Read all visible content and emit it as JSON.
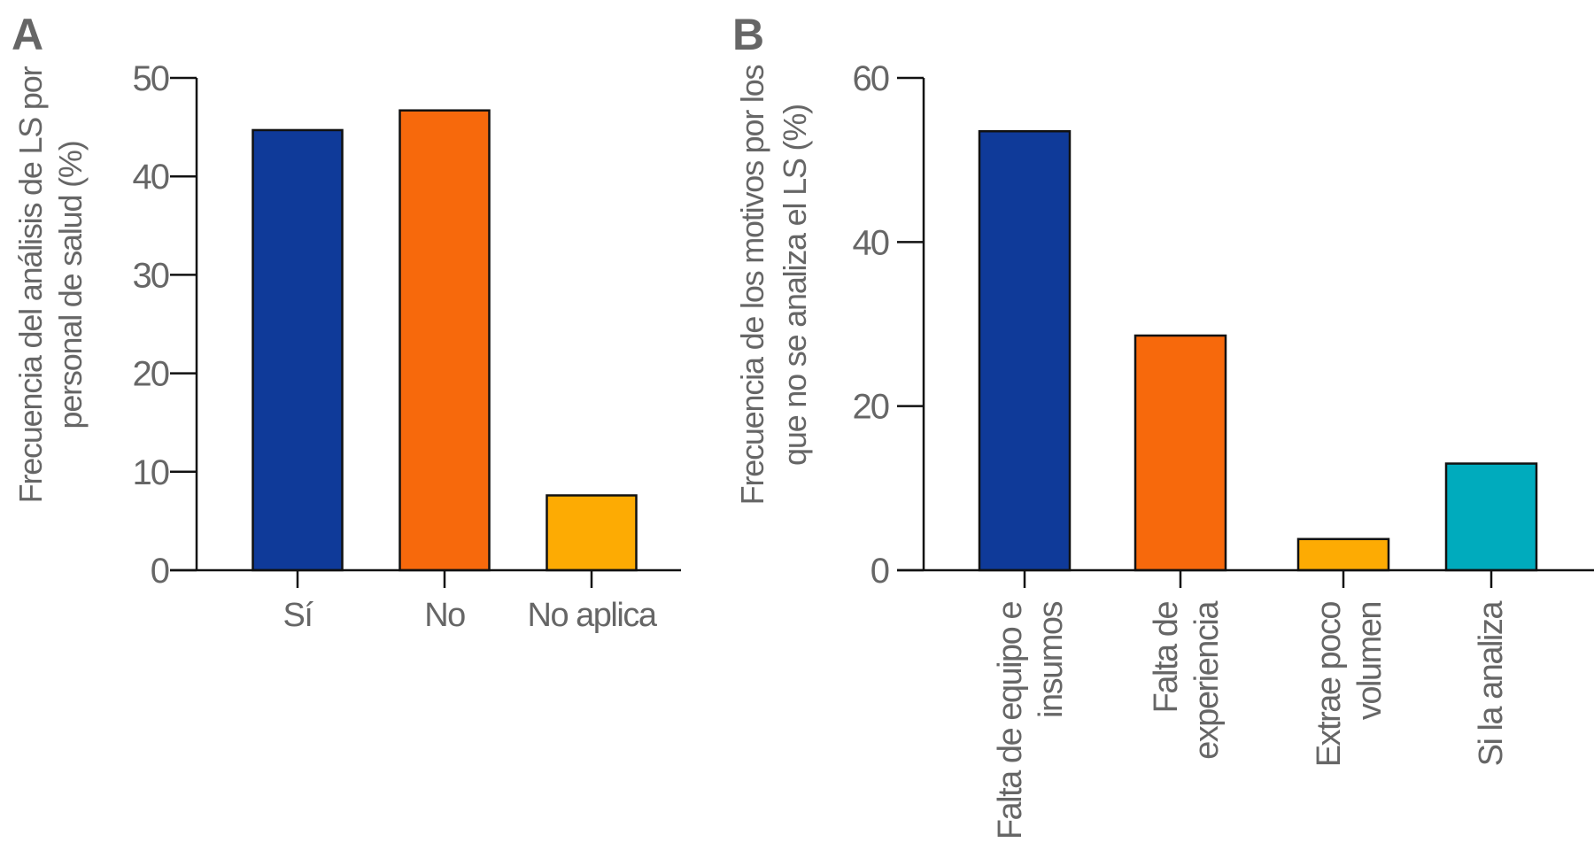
{
  "chart_data": [
    {
      "panel": "A",
      "type": "bar",
      "title": "",
      "xlabel": "",
      "ylabel_lines": [
        "Frecuencia del análisis de LS por",
        "personal de salud (%)"
      ],
      "ylim": [
        0,
        50
      ],
      "yticks": [
        0,
        10,
        20,
        30,
        40,
        50
      ],
      "categories": [
        "Sí",
        "No",
        "No aplica"
      ],
      "values": [
        44.7,
        46.7,
        7.6
      ],
      "colors": [
        "#0f3a99",
        "#f7690c",
        "#fdab03"
      ],
      "grid": false,
      "legend": "none"
    },
    {
      "panel": "B",
      "type": "bar",
      "title": "",
      "xlabel": "",
      "ylabel_lines": [
        "Frecuencia de los motivos por los",
        "que no se analiza el LS (%)"
      ],
      "ylim": [
        0,
        60
      ],
      "yticks": [
        0,
        20,
        40,
        60
      ],
      "categories": [
        [
          "Falta de equipo e",
          "insumos"
        ],
        [
          "Falta de",
          "experiencia"
        ],
        [
          "Extrae poco",
          "volumen"
        ],
        [
          "Si la analiza"
        ]
      ],
      "values": [
        53.5,
        28.6,
        3.8,
        13.0
      ],
      "colors": [
        "#0f3a99",
        "#f7690c",
        "#fdab03",
        "#00abbd"
      ],
      "grid": false,
      "legend": "none"
    }
  ]
}
